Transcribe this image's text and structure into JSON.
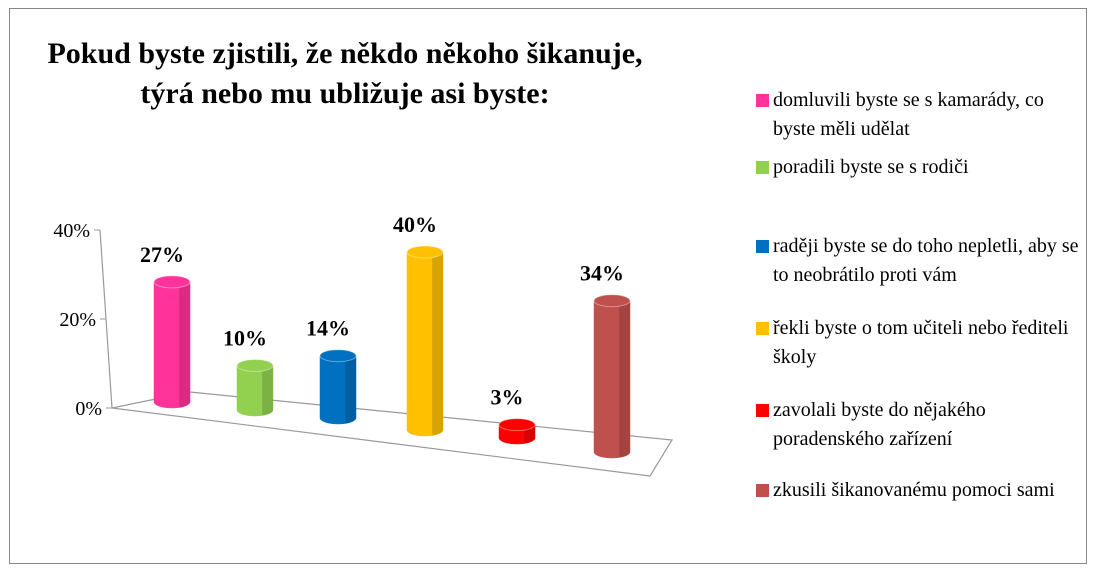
{
  "chart_data": {
    "type": "bar",
    "title": "Pokud byste zjistili, že někdo někoho šikanuje, týrá nebo mu ubližuje asi byste:",
    "categories": [
      "domluvili byste se s kamarády, co byste  měli udělat",
      "poradili byste se s rodiči",
      "raději  byste se do  toho nepletli, aby se to neobrátilo proti vám",
      "řekli byste o tom učiteli nebo řediteli školy",
      "zavolali byste do nějakého poradenského zařízení",
      "zkusili šikanovanému pomoci sami"
    ],
    "values": [
      27,
      10,
      14,
      40,
      3,
      34
    ],
    "value_labels": [
      "27%",
      "10%",
      "14%",
      "40%",
      "3%",
      "34%"
    ],
    "colors": [
      "#ff3399",
      "#92d050",
      "#0070c0",
      "#ffc000",
      "#ff0000",
      "#c0504d"
    ],
    "ylim": [
      0,
      40
    ],
    "yticks": [
      {
        "value": 0,
        "label": "0%"
      },
      {
        "value": 20,
        "label": "20%"
      },
      {
        "value": 40,
        "label": "40%"
      }
    ],
    "grid": false,
    "legend": "right"
  }
}
